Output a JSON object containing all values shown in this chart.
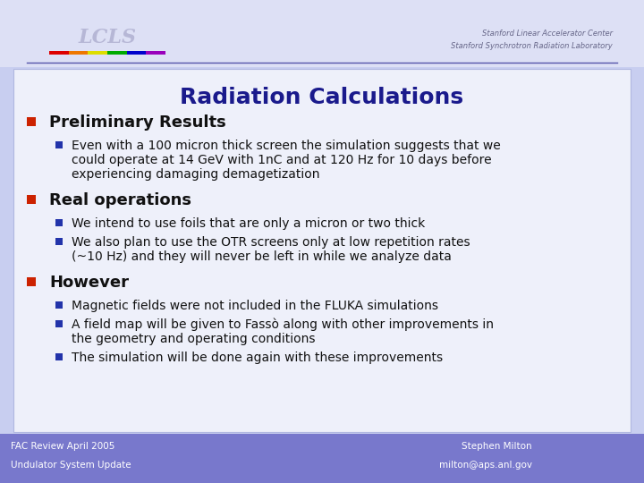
{
  "title": "Radiation Calculations",
  "title_color": "#1a1a8c",
  "title_fontsize": 18,
  "bg_color": "#c8cef0",
  "content_bg": "#eef0fa",
  "header_bg": "#dde0f5",
  "footer_bg": "#7878cc",
  "footer_text_color": "#ffffff",
  "footer_left1": "FAC Review April 2005",
  "footer_left2": "Undulator System Update",
  "footer_right1": "Stephen Milton",
  "footer_right2": "milton@aps.anl.gov",
  "header_line_color": "#5555aa",
  "header_label1": "Stanford Linear Accelerator Center",
  "header_label2": "Stanford Synchrotron Radiation Laboratory",
  "bullet_color_l1": "#cc2200",
  "bullet_color_l2": "#2233aa",
  "text_color": "#111111",
  "sections": [
    {
      "level": 1,
      "text": "Preliminary Results",
      "fontsize": 13,
      "bold": true
    },
    {
      "level": 2,
      "text": "Even with a 100 micron thick screen the simulation suggests that we\ncould operate at 14 GeV with 1nC and at 120 Hz for 10 days before\nexperiencing damaging demagetization",
      "fontsize": 10,
      "bold": false
    },
    {
      "level": 1,
      "text": "Real operations",
      "fontsize": 13,
      "bold": true
    },
    {
      "level": 2,
      "text": "We intend to use foils that are only a micron or two thick",
      "fontsize": 10,
      "bold": false
    },
    {
      "level": 2,
      "text": "We also plan to use the OTR screens only at low repetition rates\n(~10 Hz) and they will never be left in while we analyze data",
      "fontsize": 10,
      "bold": false
    },
    {
      "level": 1,
      "text": "However",
      "fontsize": 13,
      "bold": true
    },
    {
      "level": 2,
      "text": "Magnetic fields were not included in the FLUKA simulations",
      "fontsize": 10,
      "bold": false
    },
    {
      "level": 2,
      "text": "A field map will be given to Fassò along with other improvements in\nthe geometry and operating conditions",
      "fontsize": 10,
      "bold": false
    },
    {
      "level": 2,
      "text": "The simulation will be done again with these improvements",
      "fontsize": 10,
      "bold": false
    }
  ],
  "rainbow_colors": [
    "#dd0000",
    "#ee7700",
    "#dddd00",
    "#00aa00",
    "#0000cc",
    "#9900bb"
  ],
  "header_line_rainbow": [
    "#dd0000",
    "#ee7700",
    "#dddd00",
    "#00aa00",
    "#0000cc",
    "#9900bb"
  ]
}
